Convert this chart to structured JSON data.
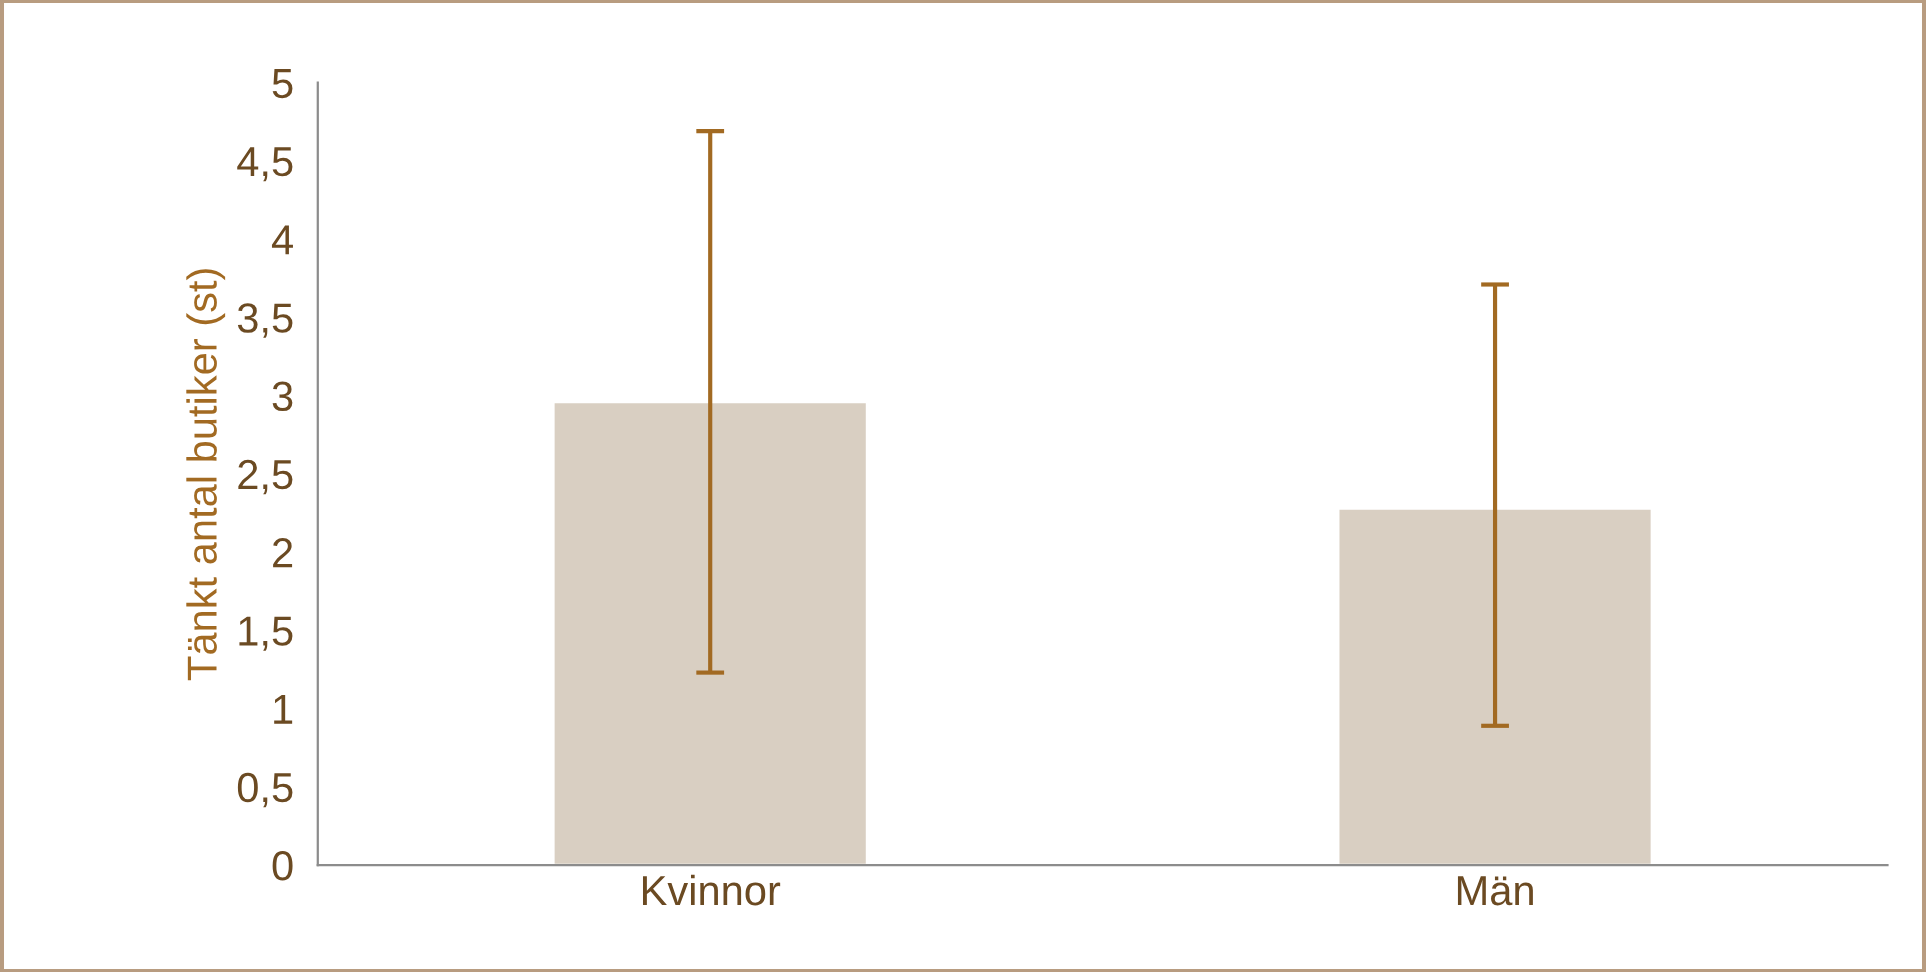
{
  "chart_data": {
    "type": "bar",
    "ylabel": "Tänkt antal butiker (st)",
    "categories": [
      "Kvinnor",
      "Män"
    ],
    "values": [
      2.96,
      2.28
    ],
    "errors": [
      [
        1.23,
        4.69
      ],
      [
        0.89,
        3.71
      ]
    ],
    "color": "#d9cfc2",
    "ylim": [
      0,
      5
    ],
    "yticks": [
      0,
      {
        "value": 0.5,
        "label": "0,5"
      },
      1,
      {
        "value": 1.5,
        "label": "1,5"
      },
      2,
      {
        "value": 2.5,
        "label": "2,5"
      },
      3,
      {
        "value": 3.5,
        "label": "3,5"
      },
      4,
      {
        "value": 4.5,
        "label": "4,5"
      },
      5
    ],
    "grid": false
  }
}
